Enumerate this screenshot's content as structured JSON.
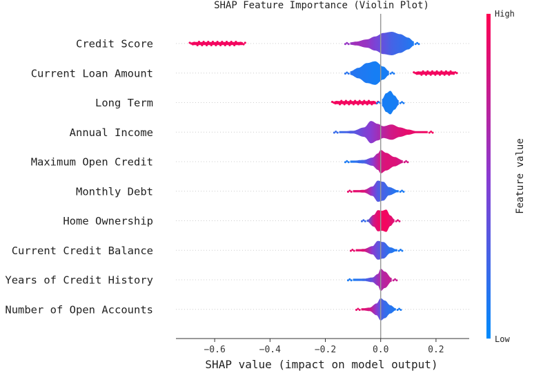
{
  "chart_data": {
    "type": "violin",
    "title": "SHAP Feature Importance (Violin Plot)",
    "xlabel": "SHAP value (impact on model output)",
    "xlim": [
      -0.74,
      0.32
    ],
    "xticks": [
      -0.6,
      -0.4,
      -0.2,
      0.0,
      0.2
    ],
    "xtick_labels": [
      "−0.6",
      "−0.4",
      "−0.2",
      "0.0",
      "0.2"
    ],
    "grid": false,
    "colorbar": {
      "title": "Feature value",
      "high_label": "High",
      "low_label": "Low",
      "high_color": "#ff0052",
      "low_color": "#008bfb"
    },
    "features": [
      {
        "name": "Credit Score",
        "bulk": [
          [
            -0.11,
            0.1,
            0.55
          ],
          [
            -0.09,
            0.16,
            0.6
          ],
          [
            -0.05,
            0.35,
            0.55
          ],
          [
            -0.02,
            0.6,
            0.45
          ],
          [
            0.01,
            0.9,
            0.35
          ],
          [
            0.04,
            1.0,
            0.25
          ],
          [
            0.07,
            0.8,
            0.2
          ],
          [
            0.1,
            0.5,
            0.15
          ],
          [
            0.12,
            0.18,
            0.1
          ]
        ],
        "clusters": [
          {
            "from": -0.69,
            "to": -0.49,
            "value": 0.95
          }
        ]
      },
      {
        "name": "Current Loan Amount",
        "bulk": [
          [
            -0.11,
            0.15,
            0.15
          ],
          [
            -0.08,
            0.45,
            0.12
          ],
          [
            -0.05,
            0.85,
            0.1
          ],
          [
            -0.02,
            1.0,
            0.08
          ],
          [
            0.01,
            0.55,
            0.08
          ],
          [
            0.03,
            0.18,
            0.1
          ]
        ],
        "clusters": [
          {
            "from": 0.12,
            "to": 0.275,
            "value": 0.95
          }
        ]
      },
      {
        "name": "Long Term",
        "bulk": [
          [
            0.005,
            0.3,
            0.1
          ],
          [
            0.02,
            0.8,
            0.08
          ],
          [
            0.035,
            1.0,
            0.08
          ],
          [
            0.05,
            0.6,
            0.08
          ],
          [
            0.065,
            0.2,
            0.1
          ]
        ],
        "clusters": [
          {
            "from": -0.175,
            "to": -0.01,
            "value": 0.95
          }
        ]
      },
      {
        "name": "Annual Income",
        "bulk": [
          [
            -0.15,
            0.04,
            0.2
          ],
          [
            -0.1,
            0.12,
            0.3
          ],
          [
            -0.06,
            0.4,
            0.45
          ],
          [
            -0.035,
            0.95,
            0.5
          ],
          [
            -0.01,
            0.7,
            0.6
          ],
          [
            0.01,
            0.5,
            0.7
          ],
          [
            0.04,
            0.65,
            0.8
          ],
          [
            0.07,
            0.4,
            0.85
          ],
          [
            0.1,
            0.22,
            0.9
          ],
          [
            0.13,
            0.08,
            0.9
          ],
          [
            0.17,
            0.03,
            0.95
          ]
        ],
        "clusters": []
      },
      {
        "name": "Maximum Open Credit",
        "bulk": [
          [
            -0.11,
            0.06,
            0.1
          ],
          [
            -0.06,
            0.15,
            0.25
          ],
          [
            -0.03,
            0.35,
            0.5
          ],
          [
            -0.01,
            0.7,
            0.7
          ],
          [
            0.0,
            1.0,
            0.8
          ],
          [
            0.02,
            0.75,
            0.85
          ],
          [
            0.05,
            0.4,
            0.85
          ],
          [
            0.08,
            0.12,
            0.8
          ]
        ],
        "clusters": []
      },
      {
        "name": "Monthly Debt",
        "bulk": [
          [
            -0.1,
            0.05,
            0.9
          ],
          [
            -0.06,
            0.12,
            0.85
          ],
          [
            -0.03,
            0.4,
            0.5
          ],
          [
            -0.01,
            0.9,
            0.3
          ],
          [
            0.01,
            0.8,
            0.25
          ],
          [
            0.03,
            0.35,
            0.2
          ],
          [
            0.065,
            0.06,
            0.1
          ]
        ],
        "clusters": []
      },
      {
        "name": "Home Ownership",
        "bulk": [
          [
            -0.05,
            0.05,
            0.2
          ],
          [
            -0.025,
            0.5,
            0.8
          ],
          [
            -0.01,
            0.9,
            0.9
          ],
          [
            0.005,
            0.85,
            0.95
          ],
          [
            0.02,
            0.95,
            0.95
          ],
          [
            0.035,
            0.45,
            0.9
          ],
          [
            0.05,
            0.12,
            0.85
          ]
        ],
        "clusters": []
      },
      {
        "name": "Current Credit Balance",
        "bulk": [
          [
            -0.09,
            0.05,
            0.9
          ],
          [
            -0.06,
            0.12,
            0.85
          ],
          [
            -0.03,
            0.35,
            0.5
          ],
          [
            -0.01,
            0.8,
            0.35
          ],
          [
            0.01,
            0.7,
            0.25
          ],
          [
            0.035,
            0.25,
            0.15
          ],
          [
            0.06,
            0.05,
            0.1
          ]
        ],
        "clusters": []
      },
      {
        "name": "Years of Credit History",
        "bulk": [
          [
            -0.1,
            0.04,
            0.1
          ],
          [
            -0.06,
            0.1,
            0.2
          ],
          [
            -0.03,
            0.2,
            0.4
          ],
          [
            -0.01,
            0.5,
            0.6
          ],
          [
            0.0,
            0.95,
            0.65
          ],
          [
            0.015,
            0.7,
            0.7
          ],
          [
            0.04,
            0.15,
            0.75
          ]
        ],
        "clusters": []
      },
      {
        "name": "Number of Open Accounts",
        "bulk": [
          [
            -0.07,
            0.06,
            0.9
          ],
          [
            -0.04,
            0.15,
            0.8
          ],
          [
            -0.015,
            0.5,
            0.5
          ],
          [
            0.0,
            0.95,
            0.3
          ],
          [
            0.015,
            0.75,
            0.2
          ],
          [
            0.035,
            0.35,
            0.15
          ],
          [
            0.055,
            0.08,
            0.1
          ]
        ],
        "clusters": []
      }
    ]
  }
}
